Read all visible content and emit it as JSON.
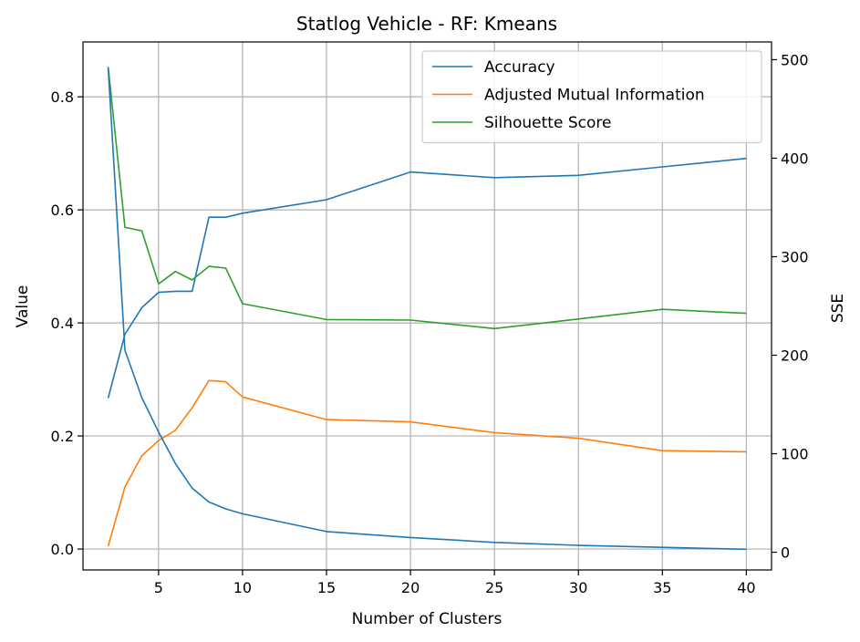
{
  "chart_data": {
    "type": "line",
    "title": "Statlog Vehicle - RF: Kmeans",
    "xlabel": "Number of Clusters",
    "ylabel": "Value",
    "y2label": "SSE",
    "xlim": [
      0.5,
      41.5
    ],
    "ylim": [
      -0.037,
      0.897
    ],
    "y2lim": [
      -18,
      518
    ],
    "xticks": [
      5,
      10,
      15,
      20,
      25,
      30,
      35,
      40
    ],
    "yticks": [
      0.0,
      0.2,
      0.4,
      0.6,
      0.8
    ],
    "y2ticks": [
      0,
      100,
      200,
      300,
      400,
      500
    ],
    "grid": true,
    "legend_position": "top-right",
    "x": [
      2,
      3,
      4,
      5,
      6,
      7,
      8,
      9,
      10,
      15,
      20,
      25,
      30,
      35,
      40
    ],
    "series": [
      {
        "name": "Accuracy",
        "axis": "left",
        "color": "#1f77b4",
        "values": [
          0.267,
          0.38,
          0.427,
          0.454,
          0.456,
          0.456,
          0.587,
          0.587,
          0.594,
          0.618,
          0.667,
          0.657,
          0.661,
          0.676,
          0.691
        ]
      },
      {
        "name": "Adjusted Mutual Information",
        "axis": "left",
        "color": "#ff7f0e",
        "values": [
          0.005,
          0.11,
          0.165,
          0.192,
          0.21,
          0.25,
          0.298,
          0.296,
          0.269,
          0.229,
          0.225,
          0.206,
          0.196,
          0.174,
          0.172
        ]
      },
      {
        "name": "Silhouette Score",
        "axis": "left",
        "color": "#2ca02c",
        "values": [
          0.853,
          0.569,
          0.563,
          0.469,
          0.491,
          0.476,
          0.5,
          0.497,
          0.434,
          0.406,
          0.405,
          0.39,
          0.407,
          0.424,
          0.417
        ]
      },
      {
        "name": "SSE",
        "axis": "right",
        "color": "#1f77b4",
        "values": [
          492,
          205,
          157,
          122,
          90,
          65,
          51,
          44,
          39,
          21,
          15,
          10,
          7,
          5,
          3
        ]
      }
    ]
  }
}
